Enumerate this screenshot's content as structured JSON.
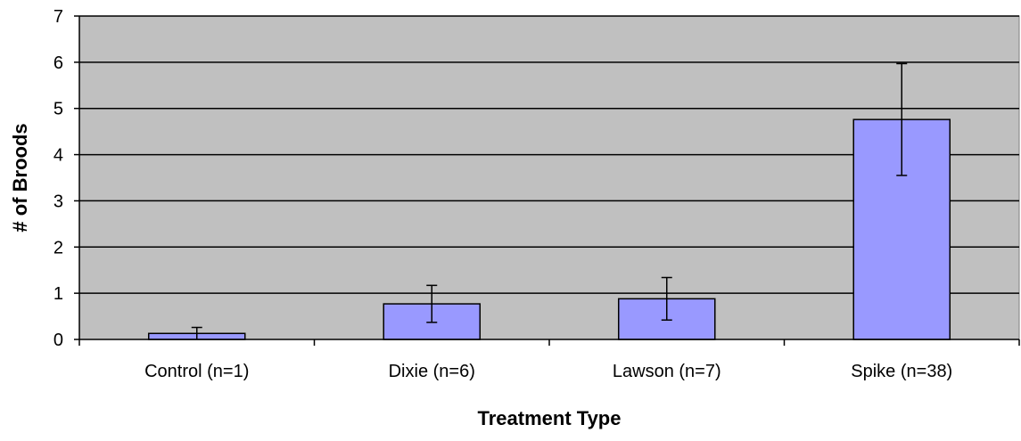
{
  "chart_data": {
    "type": "bar",
    "title": "",
    "xlabel": "Treatment Type",
    "ylabel": "# of Broods",
    "categories": [
      "Control (n=1)",
      "Dixie (n=6)",
      "Lawson (n=7)",
      "Spike (n=38)"
    ],
    "values": [
      0.13,
      0.77,
      0.88,
      4.76
    ],
    "error_low": [
      0.0,
      0.37,
      0.42,
      3.55
    ],
    "error_high": [
      0.26,
      1.17,
      1.34,
      5.97
    ],
    "ylim": [
      0,
      7
    ],
    "yticks": [
      "0",
      "1",
      "2",
      "3",
      "4",
      "5",
      "6",
      "7"
    ],
    "grid": true,
    "legend": "none",
    "colors": {
      "plot_background": "#c0c0c0",
      "bar_fill": "#9999ff",
      "bar_stroke": "#000000",
      "gridline": "#000000"
    }
  }
}
